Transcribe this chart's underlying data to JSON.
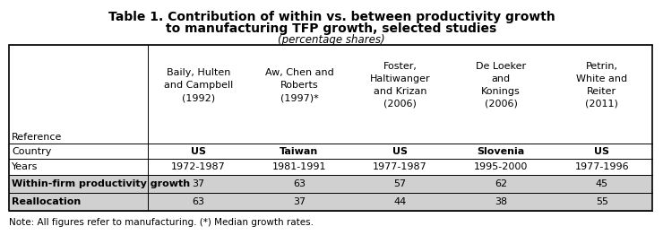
{
  "title_line1": "Table 1. Contribution of within vs. between productivity growth",
  "title_line2": "to manufacturing TFP growth, selected studies",
  "subtitle": "(percentage shares)",
  "col_headers": [
    [
      "Baily, Hulten",
      "and Campbell",
      "(1992)"
    ],
    [
      "Aw, Chen and",
      "Roberts",
      "(1997)*"
    ],
    [
      "Foster,",
      "Haltiwanger",
      "and Krizan",
      "(2006)"
    ],
    [
      "De Loeker",
      "and",
      "Konings",
      "(2006)"
    ],
    [
      "Petrin,",
      "White and",
      "Reiter",
      "(2011)"
    ]
  ],
  "countries": [
    "US",
    "Taiwan",
    "US",
    "Slovenia",
    "US"
  ],
  "years": [
    "1972-1987",
    "1981-1991",
    "1977-1987",
    "1995-2000",
    "1977-1996"
  ],
  "within_values": [
    "37",
    "63",
    "57",
    "62",
    "45"
  ],
  "reallocation_values": [
    "63",
    "37",
    "44",
    "38",
    "55"
  ],
  "note": "Note: All figures refer to manufacturing. (*) Median growth rates.",
  "bg_color": "#ffffff",
  "border_color": "#000000",
  "shade_color": "#d0d0d0",
  "title_fontsize": 10,
  "subtitle_fontsize": 8.5,
  "cell_fontsize": 8,
  "note_fontsize": 7.5
}
